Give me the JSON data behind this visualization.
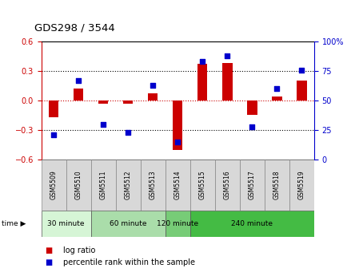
{
  "title": "GDS298 / 3544",
  "samples": [
    "GSM5509",
    "GSM5510",
    "GSM5511",
    "GSM5512",
    "GSM5513",
    "GSM5514",
    "GSM5515",
    "GSM5516",
    "GSM5517",
    "GSM5518",
    "GSM5519"
  ],
  "log_ratio": [
    -0.17,
    0.12,
    -0.03,
    -0.03,
    0.07,
    -0.5,
    0.37,
    0.38,
    -0.15,
    0.04,
    0.2
  ],
  "percentile": [
    21,
    67,
    30,
    23,
    63,
    15,
    83,
    88,
    28,
    60,
    76
  ],
  "groups": [
    {
      "label": "30 minute",
      "start": 0,
      "end": 2,
      "color": "#d6f5d6"
    },
    {
      "label": "60 minute",
      "start": 2,
      "end": 5,
      "color": "#aaddaa"
    },
    {
      "label": "120 minute",
      "start": 5,
      "end": 6,
      "color": "#77cc77"
    },
    {
      "label": "240 minute",
      "start": 6,
      "end": 11,
      "color": "#44bb44"
    }
  ],
  "ylim_left": [
    -0.6,
    0.6
  ],
  "ylim_right": [
    0,
    100
  ],
  "yticks_left": [
    -0.6,
    -0.3,
    0.0,
    0.3,
    0.6
  ],
  "yticks_right": [
    0,
    25,
    50,
    75,
    100
  ],
  "ytick_labels_right": [
    "0",
    "25",
    "50",
    "75",
    "100%"
  ],
  "bar_color": "#cc0000",
  "dot_color": "#0000cc",
  "zero_line_color": "#cc0000",
  "grid_color": "#000000",
  "bg_color": "#ffffff",
  "plot_bg": "#ffffff",
  "legend_log_ratio": "log ratio",
  "legend_percentile": "percentile rank within the sample",
  "time_label": "time"
}
